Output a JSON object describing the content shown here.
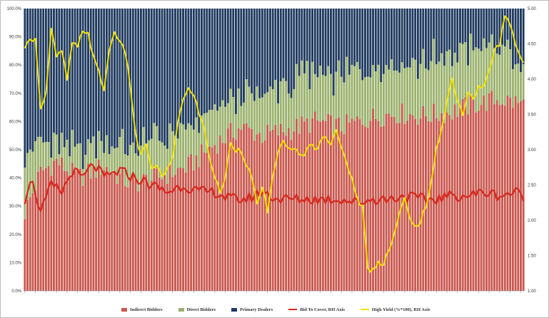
{
  "chart_data": {
    "type": "bar",
    "stacked": true,
    "y_left": {
      "ticks": [
        "0.0%",
        "10.0%",
        "20.0%",
        "30.0%",
        "40.0%",
        "50.0%",
        "60.0%",
        "70.0%",
        "80.0%",
        "90.0%",
        "100.0%"
      ],
      "ylim": [
        0,
        100
      ]
    },
    "y_right": {
      "ticks": [
        "1.00",
        "1.50",
        "2.00",
        "2.50",
        "3.00",
        "3.50",
        "4.00",
        "4.50",
        "5.00"
      ],
      "ylim": [
        1.0,
        5.0
      ]
    },
    "x_count": 190,
    "x_labels_note": "x-axis date labels are printed but illegible at this resolution",
    "bar_series": [
      {
        "name": "Indirect Bidders",
        "color": "#c9584f",
        "anchors": [
          [
            0,
            28
          ],
          [
            6,
            42
          ],
          [
            12,
            46
          ],
          [
            20,
            40
          ],
          [
            30,
            44
          ],
          [
            40,
            38
          ],
          [
            50,
            40
          ],
          [
            62,
            44
          ],
          [
            72,
            52
          ],
          [
            82,
            58
          ],
          [
            90,
            55
          ],
          [
            100,
            57
          ],
          [
            110,
            60
          ],
          [
            120,
            58
          ],
          [
            130,
            61
          ],
          [
            140,
            63
          ],
          [
            150,
            62
          ],
          [
            160,
            63
          ],
          [
            170,
            66
          ],
          [
            180,
            68
          ],
          [
            189,
            66
          ]
        ]
      },
      {
        "name": "Direct Bidders",
        "color": "#9bb26e",
        "anchors": [
          [
            0,
            22
          ],
          [
            6,
            10
          ],
          [
            12,
            6
          ],
          [
            20,
            9
          ],
          [
            30,
            10
          ],
          [
            40,
            12
          ],
          [
            50,
            14
          ],
          [
            62,
            12
          ],
          [
            72,
            12
          ],
          [
            82,
            11
          ],
          [
            90,
            14
          ],
          [
            100,
            16
          ],
          [
            110,
            17
          ],
          [
            120,
            18
          ],
          [
            130,
            19
          ],
          [
            140,
            18
          ],
          [
            150,
            19
          ],
          [
            160,
            20
          ],
          [
            170,
            20
          ],
          [
            180,
            19
          ],
          [
            189,
            11
          ]
        ]
      },
      {
        "name": "Primary Dealers",
        "color": "#1f3a5f",
        "note": "remainder to 100%"
      }
    ],
    "line_series": [
      {
        "name": "Bid To Cover, RH Axis",
        "color": "#d9261c",
        "axis": "right",
        "anchors": [
          [
            0,
            2.3
          ],
          [
            2,
            2.6
          ],
          [
            4,
            2.4
          ],
          [
            6,
            2.1
          ],
          [
            10,
            2.5
          ],
          [
            14,
            2.4
          ],
          [
            18,
            2.7
          ],
          [
            22,
            2.6
          ],
          [
            26,
            2.8
          ],
          [
            30,
            2.6
          ],
          [
            36,
            2.7
          ],
          [
            42,
            2.6
          ],
          [
            48,
            2.5
          ],
          [
            54,
            2.4
          ],
          [
            60,
            2.5
          ],
          [
            66,
            2.4
          ],
          [
            72,
            2.4
          ],
          [
            78,
            2.3
          ],
          [
            84,
            2.3
          ],
          [
            90,
            2.4
          ],
          [
            96,
            2.3
          ],
          [
            102,
            2.3
          ],
          [
            108,
            2.3
          ],
          [
            114,
            2.3
          ],
          [
            120,
            2.3
          ],
          [
            126,
            2.25
          ],
          [
            132,
            2.3
          ],
          [
            138,
            2.3
          ],
          [
            144,
            2.35
          ],
          [
            150,
            2.3
          ],
          [
            156,
            2.3
          ],
          [
            162,
            2.35
          ],
          [
            168,
            2.35
          ],
          [
            174,
            2.4
          ],
          [
            180,
            2.35
          ],
          [
            186,
            2.4
          ],
          [
            189,
            2.35
          ]
        ]
      },
      {
        "name": "High Yield (%*100), RH Axis",
        "color": "#f2e200",
        "axis": "right",
        "anchors": [
          [
            0,
            4.4
          ],
          [
            2,
            4.6
          ],
          [
            4,
            4.55
          ],
          [
            6,
            3.6
          ],
          [
            8,
            3.8
          ],
          [
            10,
            4.7
          ],
          [
            12,
            4.3
          ],
          [
            14,
            4.4
          ],
          [
            16,
            4.0
          ],
          [
            18,
            4.5
          ],
          [
            20,
            4.45
          ],
          [
            22,
            4.7
          ],
          [
            24,
            4.65
          ],
          [
            26,
            4.3
          ],
          [
            28,
            4.1
          ],
          [
            30,
            3.85
          ],
          [
            32,
            4.4
          ],
          [
            34,
            4.7
          ],
          [
            36,
            4.5
          ],
          [
            38,
            4.4
          ],
          [
            40,
            3.9
          ],
          [
            42,
            3.2
          ],
          [
            44,
            2.9
          ],
          [
            46,
            3.1
          ],
          [
            48,
            2.7
          ],
          [
            50,
            2.8
          ],
          [
            52,
            2.6
          ],
          [
            54,
            2.7
          ],
          [
            56,
            2.9
          ],
          [
            58,
            3.4
          ],
          [
            60,
            3.7
          ],
          [
            62,
            3.85
          ],
          [
            64,
            3.8
          ],
          [
            66,
            3.5
          ],
          [
            68,
            3.3
          ],
          [
            70,
            2.9
          ],
          [
            72,
            2.6
          ],
          [
            74,
            2.4
          ],
          [
            76,
            2.6
          ],
          [
            78,
            3.1
          ],
          [
            80,
            3.0
          ],
          [
            82,
            3.0
          ],
          [
            84,
            2.8
          ],
          [
            86,
            2.6
          ],
          [
            88,
            2.2
          ],
          [
            90,
            2.5
          ],
          [
            92,
            2.1
          ],
          [
            94,
            2.6
          ],
          [
            96,
            3.0
          ],
          [
            98,
            3.1
          ],
          [
            100,
            3.0
          ],
          [
            102,
            3.05
          ],
          [
            104,
            2.9
          ],
          [
            106,
            2.9
          ],
          [
            108,
            3.1
          ],
          [
            110,
            3.0
          ],
          [
            112,
            3.1
          ],
          [
            114,
            3.2
          ],
          [
            116,
            3.1
          ],
          [
            118,
            3.3
          ],
          [
            120,
            3.0
          ],
          [
            122,
            2.8
          ],
          [
            124,
            2.6
          ],
          [
            126,
            2.3
          ],
          [
            128,
            2.2
          ],
          [
            130,
            1.3
          ],
          [
            132,
            1.3
          ],
          [
            134,
            1.4
          ],
          [
            136,
            1.4
          ],
          [
            138,
            1.6
          ],
          [
            140,
            1.8
          ],
          [
            142,
            2.1
          ],
          [
            144,
            2.3
          ],
          [
            146,
            2.0
          ],
          [
            148,
            1.9
          ],
          [
            150,
            2.0
          ],
          [
            152,
            2.2
          ],
          [
            154,
            2.5
          ],
          [
            156,
            3.0
          ],
          [
            158,
            3.3
          ],
          [
            160,
            3.7
          ],
          [
            162,
            4.0
          ],
          [
            164,
            3.7
          ],
          [
            166,
            3.5
          ],
          [
            168,
            3.8
          ],
          [
            170,
            3.7
          ],
          [
            172,
            3.9
          ],
          [
            174,
            3.9
          ],
          [
            176,
            4.1
          ],
          [
            178,
            4.4
          ],
          [
            180,
            4.5
          ],
          [
            182,
            4.9
          ],
          [
            184,
            4.8
          ],
          [
            186,
            4.5
          ],
          [
            189,
            4.2
          ]
        ]
      }
    ],
    "legend": [
      {
        "label": "Indirect Bidders",
        "color": "#c9584f",
        "kind": "bar"
      },
      {
        "label": "Direct Bidders",
        "color": "#9bb26e",
        "kind": "bar"
      },
      {
        "label": "Primary Dealers",
        "color": "#1f3a5f",
        "kind": "bar"
      },
      {
        "label": "Bid To Cover, RH Axis",
        "color": "#d9261c",
        "kind": "line"
      },
      {
        "label": "High Yield (%*100), RH Axis",
        "color": "#f2e200",
        "kind": "line"
      }
    ],
    "legend_position": "bottom",
    "grid": false
  }
}
